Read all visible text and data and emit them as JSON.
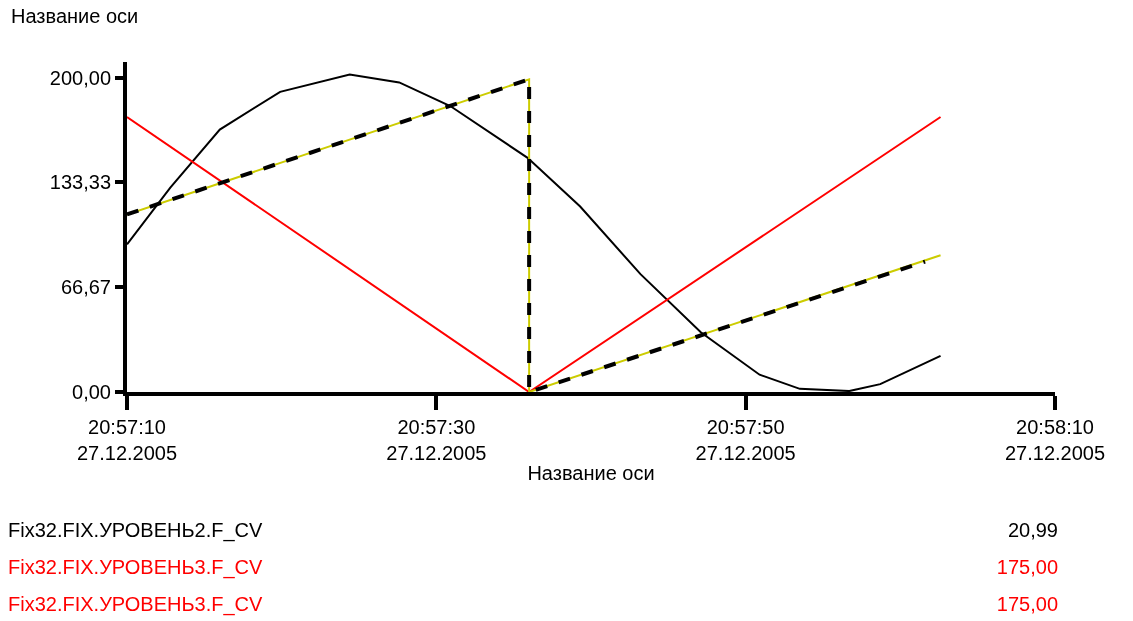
{
  "chart_data": {
    "type": "line",
    "xlabel": "Название оси",
    "ylabel": "Название оси",
    "xlim": [
      "2005-12-27T20:57:10",
      "2005-12-27T20:58:10"
    ],
    "xticks": [
      {
        "value": "2005-12-27T20:57:10",
        "label": "20:57:10\n27.12.2005"
      },
      {
        "value": "2005-12-27T20:57:30",
        "label": "20:57:30\n27.12.2005"
      },
      {
        "value": "2005-12-27T20:57:50",
        "label": "20:57:50\n27.12.2005"
      },
      {
        "value": "2005-12-27T20:58:10",
        "label": "20:58:10\n27.12.2005"
      }
    ],
    "ylim": [
      0,
      210
    ],
    "yticks": [
      {
        "value": 0,
        "label": "0,00"
      },
      {
        "value": 66.67,
        "label": "66,67"
      },
      {
        "value": 133.33,
        "label": "133,33"
      },
      {
        "value": 200,
        "label": "200,00"
      }
    ],
    "grid": false,
    "marker": "none",
    "series": [
      {
        "color": "#000000",
        "line_style": "solid",
        "x": [
          "2005-12-27T20:57:10",
          "2005-12-27T20:57:12.8",
          "2005-12-27T20:57:16",
          "2005-12-27T20:57:19.9",
          "2005-12-27T20:57:24.4",
          "2005-12-27T20:57:27.6",
          "2005-12-27T20:57:30.9",
          "2005-12-27T20:57:35.9",
          "2005-12-27T20:57:39.3",
          "2005-12-27T20:57:43.2",
          "2005-12-27T20:57:47.1",
          "2005-12-27T20:57:50.9",
          "2005-12-27T20:57:53.5",
          "2005-12-27T20:57:56.7",
          "2005-12-27T20:57:58.7",
          "2005-12-27T20:58:02.6"
        ],
        "values": [
          94,
          130,
          167,
          191,
          202,
          197,
          182,
          149,
          118,
          75,
          38,
          11,
          2,
          0.6,
          5,
          23
        ]
      },
      {
        "color": "#ff0000",
        "line_style": "solid",
        "x": [
          "2005-12-27T20:57:10",
          "2005-12-27T20:57:36",
          "2005-12-27T20:58:02.6"
        ],
        "values": [
          175,
          0,
          175
        ]
      },
      {
        "color": "#cccc00",
        "line_style": "solid",
        "x": [
          "2005-12-27T20:57:10",
          "2005-12-27T20:57:36",
          "2005-12-27T20:57:36",
          "2005-12-27T20:58:02.6"
        ],
        "values": [
          113,
          199,
          0,
          87
        ]
      },
      {
        "color": "#000000",
        "line_style": "dashed",
        "x": [
          "2005-12-27T20:57:10",
          "2005-12-27T20:57:36",
          "2005-12-27T20:57:36",
          "2005-12-27T20:58:01.6"
        ],
        "values": [
          113,
          199,
          0,
          83
        ]
      }
    ],
    "annotations": [
      "Fix32.FIX.УРОВЕНЬ2.F_CV",
      "20,99",
      "Fix32.FIX.УРОВЕНЬ3.F_CV",
      "175,00",
      "Fix32.FIX.УРОВЕНЬ3.F_CV",
      "175,00"
    ]
  }
}
